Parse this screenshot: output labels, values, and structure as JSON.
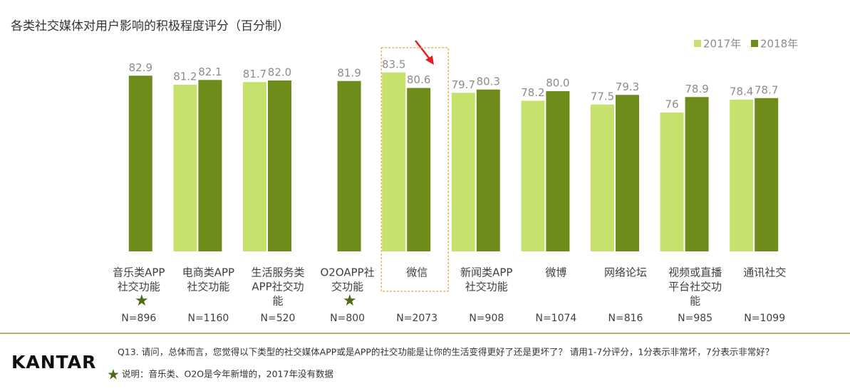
{
  "chart_data": {
    "type": "bar",
    "title": "各类社交媒体对用户影响的积极程度评分（百分制）",
    "categories": [
      [
        "音乐类APP",
        "社交功能"
      ],
      [
        "电商类APP",
        "社交功能"
      ],
      [
        "生活服务类",
        "APP社交功",
        "能"
      ],
      [
        "O2OAPP社",
        "交功能"
      ],
      [
        "微信"
      ],
      [
        "新闻类APP",
        "社交功能"
      ],
      [
        "微博"
      ],
      [
        "网络论坛"
      ],
      [
        "视频或直播",
        "平台社交功",
        "能"
      ],
      [
        "通讯社交"
      ]
    ],
    "sample_sizes": [
      "N=896",
      "N=1160",
      "N=520",
      "N=800",
      "N=2073",
      "N=908",
      "N=1074",
      "N=816",
      "N=985",
      "N=1099"
    ],
    "series": [
      {
        "name": "2017年",
        "color": "#c6e26c",
        "values": [
          null,
          81.2,
          81.7,
          null,
          83.5,
          79.7,
          78.2,
          77.5,
          76,
          78.4
        ],
        "value_labels": [
          null,
          "81.2",
          "81.7",
          null,
          "83.5",
          "79.7",
          "78.2",
          "77.5",
          "76",
          "78.4"
        ]
      },
      {
        "name": "2018年",
        "color": "#6e8c1a",
        "values": [
          82.9,
          82.1,
          82,
          81.9,
          80.6,
          80.3,
          80,
          79.3,
          78.9,
          78.7
        ],
        "value_labels": [
          "82.9",
          "82.1",
          "82.0",
          "81.9",
          "80.6",
          "80.3",
          "80.0",
          "79.3",
          "78.9",
          "78.7"
        ]
      }
    ],
    "ylim": [
      50,
      85
    ],
    "highlight": 4,
    "brand": "KANTAR",
    "question": "Q13. 请问，总体而言，您觉得以下类型的社交媒体APP或是APP的社交功能是让你的生活变得更好了还是更坏了？ 请用1-7分评分，1分表示非常坏，7分表示非常好？",
    "note": "说明：音乐类、O2O是今年新增的，2017年没有数据"
  }
}
